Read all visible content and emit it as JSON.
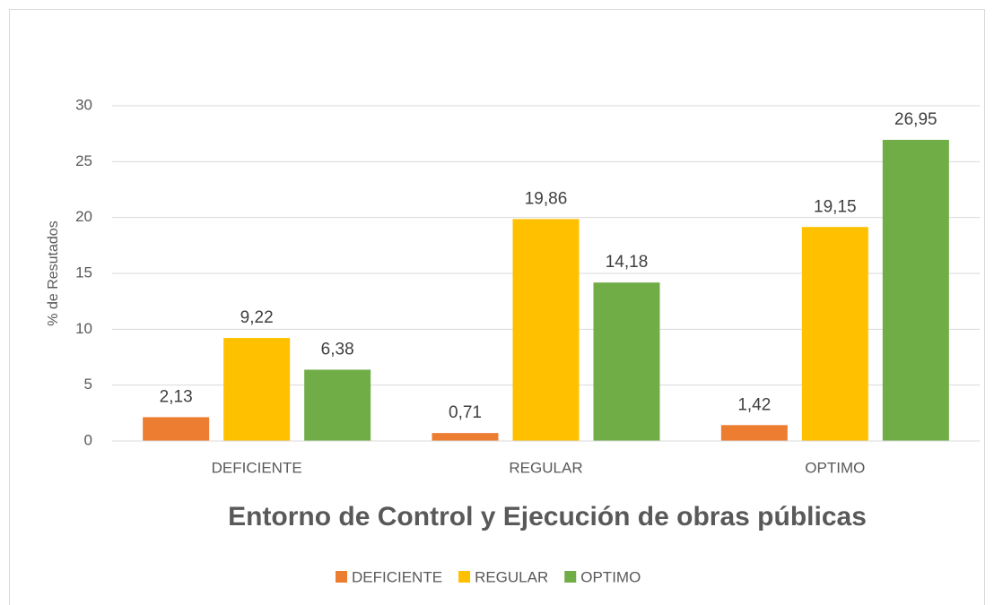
{
  "chart_data": {
    "type": "bar",
    "x_label": "Entorno  de Control y Ejecución de obras públicas",
    "y_label": "% de Resutados",
    "categories": [
      "DEFICIENTE",
      "REGULAR",
      "OPTIMO"
    ],
    "series": [
      {
        "name": "DEFICIENTE",
        "color": "#ed7d31",
        "values": [
          2.13,
          0.71,
          1.42
        ],
        "value_labels": [
          "2,13",
          "0,71",
          "1,42"
        ]
      },
      {
        "name": "REGULAR",
        "color": "#ffc000",
        "values": [
          9.22,
          19.86,
          19.15
        ],
        "value_labels": [
          "9,22",
          "19,86",
          "19,15"
        ]
      },
      {
        "name": "OPTIMO",
        "color": "#70ad47",
        "values": [
          6.38,
          14.18,
          26.95
        ],
        "value_labels": [
          "6,38",
          "14,18",
          "26,95"
        ]
      }
    ],
    "ylim": [
      0,
      30
    ],
    "yticks": [
      0,
      5,
      10,
      15,
      20,
      25,
      30
    ],
    "grid": true,
    "legend": "bottom"
  }
}
